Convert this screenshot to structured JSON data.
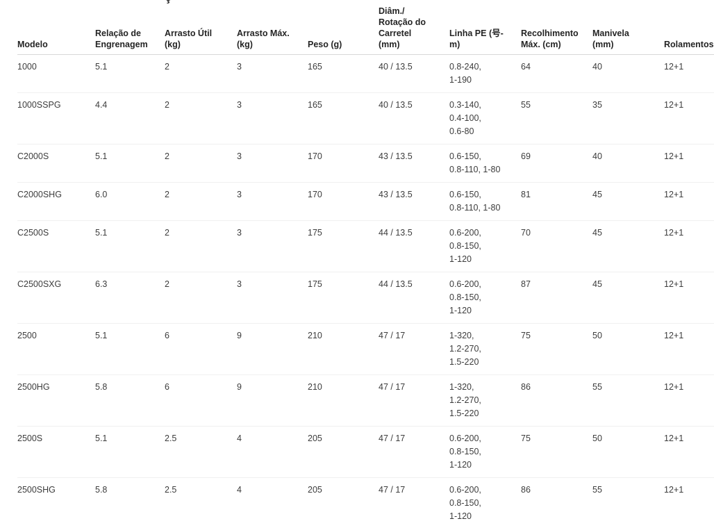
{
  "clipped_fragment": "ç",
  "colors": {
    "background": "#ffffff",
    "header_text": "#242424",
    "body_text": "#3c3c3c",
    "header_border": "#d8d8d8",
    "row_border": "#f0f0f0"
  },
  "table": {
    "columns": [
      {
        "id": "modelo",
        "label_lines": [
          "Modelo"
        ]
      },
      {
        "id": "relacao-de-engrenagem",
        "label_lines": [
          "Relação de",
          "Engrenagem"
        ]
      },
      {
        "id": "arrasto-util",
        "label_lines": [
          "Arrasto Útil",
          "(kg)"
        ]
      },
      {
        "id": "arrasto-max",
        "label_lines": [
          "Arrasto Máx.",
          "(kg)"
        ]
      },
      {
        "id": "peso",
        "label_lines": [
          "Peso (g)"
        ]
      },
      {
        "id": "diam-rotacao-carretel",
        "label_lines": [
          "Diâm./",
          "Rotação do",
          "Carretel",
          "(mm)"
        ]
      },
      {
        "id": "linha-pe",
        "label_lines": [
          "Linha PE (号-",
          "m)"
        ]
      },
      {
        "id": "recolhimento-max",
        "label_lines": [
          "Recolhimento",
          "Máx. (cm)"
        ]
      },
      {
        "id": "manivela",
        "label_lines": [
          "Manivela",
          "(mm)"
        ]
      },
      {
        "id": "rolamentos",
        "label_lines": [
          "Rolamentos"
        ]
      }
    ],
    "rows": [
      {
        "cells": [
          "1000",
          "5.1",
          "2",
          "3",
          "165",
          "40 / 13.5",
          [
            "0.8-240,",
            "1-190"
          ],
          "64",
          "40",
          "12+1"
        ]
      },
      {
        "cells": [
          "1000SSPG",
          "4.4",
          "2",
          "3",
          "165",
          "40 / 13.5",
          [
            "0.3-140,",
            "0.4-100,",
            "0.6-80"
          ],
          "55",
          "35",
          "12+1"
        ]
      },
      {
        "cells": [
          "C2000S",
          "5.1",
          "2",
          "3",
          "170",
          "43 / 13.5",
          [
            "0.6-150,",
            "0.8-110, 1-80"
          ],
          "69",
          "40",
          "12+1"
        ]
      },
      {
        "cells": [
          "C2000SHG",
          "6.0",
          "2",
          "3",
          "170",
          "43 / 13.5",
          [
            "0.6-150,",
            "0.8-110, 1-80"
          ],
          "81",
          "45",
          "12+1"
        ]
      },
      {
        "cells": [
          "C2500S",
          "5.1",
          "2",
          "3",
          "175",
          "44 / 13.5",
          [
            "0.6-200,",
            "0.8-150,",
            "1-120"
          ],
          "70",
          "45",
          "12+1"
        ]
      },
      {
        "cells": [
          "C2500SXG",
          "6.3",
          "2",
          "3",
          "175",
          "44 / 13.5",
          [
            "0.6-200,",
            "0.8-150,",
            "1-120"
          ],
          "87",
          "45",
          "12+1"
        ]
      },
      {
        "cells": [
          "2500",
          "5.1",
          "6",
          "9",
          "210",
          "47 / 17",
          [
            "1-320,",
            "1.2-270,",
            "1.5-220"
          ],
          "75",
          "50",
          "12+1"
        ]
      },
      {
        "cells": [
          "2500HG",
          "5.8",
          "6",
          "9",
          "210",
          "47 / 17",
          [
            "1-320,",
            "1.2-270,",
            "1.5-220"
          ],
          "86",
          "55",
          "12+1"
        ]
      },
      {
        "cells": [
          "2500S",
          "5.1",
          "2.5",
          "4",
          "205",
          "47 / 17",
          [
            "0.6-200,",
            "0.8-150,",
            "1-120"
          ],
          "75",
          "50",
          "12+1"
        ]
      },
      {
        "cells": [
          "2500SHG",
          "5.8",
          "2.5",
          "4",
          "205",
          "47 / 17",
          [
            "0.6-200,",
            "0.8-150,",
            "1-120"
          ],
          "86",
          "55",
          "12+1"
        ]
      }
    ]
  }
}
